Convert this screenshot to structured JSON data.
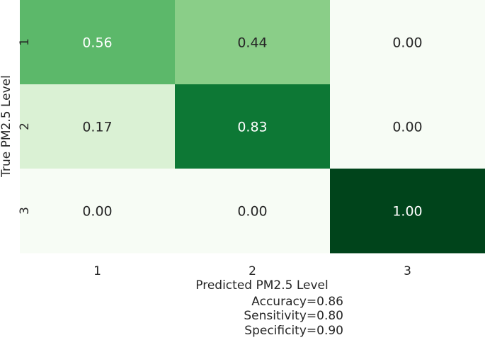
{
  "chart_data": {
    "type": "heatmap",
    "title": "",
    "xlabel": "Predicted PM2.5 Level",
    "ylabel": "True PM2.5 Level",
    "x_categories": [
      "1",
      "2",
      "3"
    ],
    "y_categories": [
      "1",
      "2",
      "3"
    ],
    "matrix": [
      [
        0.56,
        0.44,
        0.0
      ],
      [
        0.17,
        0.83,
        0.0
      ],
      [
        0.0,
        0.0,
        1.0
      ]
    ],
    "value_format": "2 decimals",
    "colormap": "Greens",
    "colorbar": false,
    "annotations": [
      "Accuracy=0.86",
      "Sensitivity=0.80",
      "Specificity=0.90"
    ],
    "colors": {
      "low": "#f7fcf5",
      "high": "#00441b",
      "text_dark": "#262626",
      "text_light": "#ffffff"
    }
  }
}
